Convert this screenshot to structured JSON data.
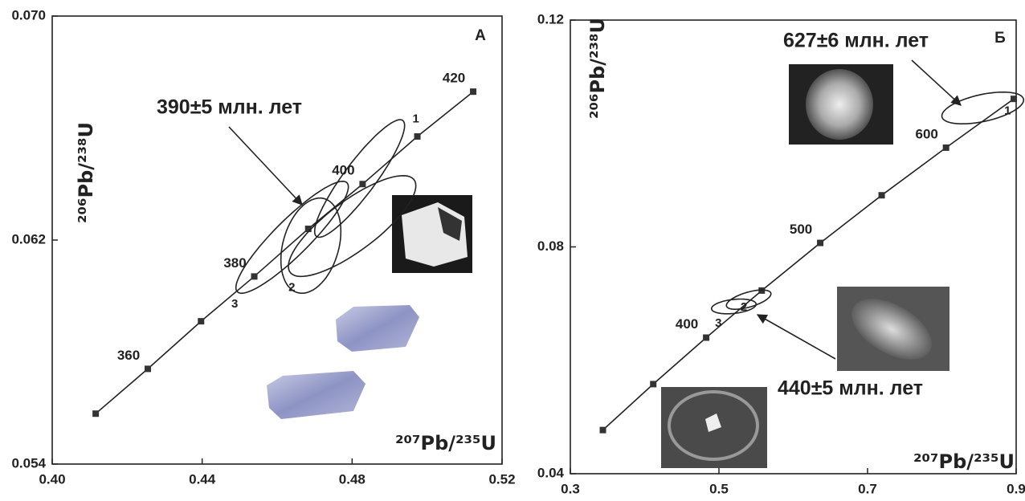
{
  "chart_data": [
    {
      "type": "concordia",
      "title": "А",
      "xlabel": "²⁰⁷Pb/²³⁵U",
      "ylabel": "²⁰⁶Pb/²³⁸U",
      "xlim": [
        0.4,
        0.52
      ],
      "ylim": [
        0.054,
        0.07
      ],
      "xticks": [
        {
          "value": 0.4,
          "label": "0.40"
        },
        0.44,
        0.48,
        0.52
      ],
      "yticks": [
        0.054,
        0.062,
        {
          "value": 0.07,
          "label": "0.070"
        }
      ],
      "concordia": {
        "x": [
          0.4116,
          0.4255,
          0.4397,
          0.4539,
          0.4683,
          0.4828,
          0.4974,
          0.5123
        ],
        "values": [
          0.0558,
          0.0574,
          0.0591,
          0.0607,
          0.0624,
          0.064,
          0.0657,
          0.0673
        ],
        "labels": [
          null,
          360,
          null,
          380,
          null,
          400,
          null,
          420
        ]
      },
      "ellipses": [
        {
          "label": "1",
          "x": 0.482,
          "y": 0.0642,
          "x_err": 0.012,
          "y_err": 0.0021,
          "rho": 0.9
        },
        {
          "label": "2",
          "x": 0.48,
          "y": 0.0625,
          "x_err": 0.017,
          "y_err": 0.0018,
          "rho": 0.8
        },
        {
          "label": "3",
          "x": 0.464,
          "y": 0.0621,
          "x_err": 0.015,
          "y_err": 0.002,
          "rho": 0.9
        },
        {
          "label": null,
          "x": 0.469,
          "y": 0.0618,
          "x_err": 0.008,
          "y_err": 0.0017,
          "rho": 0.3
        }
      ],
      "annotations": [
        "390±5 млн. лет"
      ]
    },
    {
      "type": "concordia",
      "title": "Б",
      "xlabel": "²⁰⁷Pb/²³⁵U",
      "ylabel": "²⁰⁶Pb/²³⁸U",
      "xlim": [
        0.3,
        0.9
      ],
      "ylim": [
        0.04,
        0.12
      ],
      "xticks": [
        0.3,
        0.5,
        0.7,
        0.9
      ],
      "yticks": [
        0.04,
        0.08,
        0.12
      ],
      "concordia": {
        "x": [
          0.3438,
          0.4116,
          0.4828,
          0.5576,
          0.6363,
          0.719,
          0.8056,
          0.8968
        ],
        "values": [
          0.0477,
          0.0558,
          0.064,
          0.0723,
          0.0807,
          0.0891,
          0.0975,
          0.1061
        ],
        "labels": [
          null,
          null,
          400,
          null,
          500,
          null,
          600,
          null
        ]
      },
      "ellipses": [
        {
          "label": "1",
          "x": 0.855,
          "y": 0.1045,
          "x_err": 0.055,
          "y_err": 0.0028,
          "rho": 0.5
        },
        {
          "label": "2",
          "x": 0.54,
          "y": 0.0707,
          "x_err": 0.03,
          "y_err": 0.0017,
          "rho": 0.6
        },
        {
          "label": "3",
          "x": 0.52,
          "y": 0.0695,
          "x_err": 0.03,
          "y_err": 0.0013,
          "rho": 0.3
        }
      ],
      "annotations": [
        "627±6 млн. лет",
        "440±5 млн. лет"
      ]
    }
  ]
}
